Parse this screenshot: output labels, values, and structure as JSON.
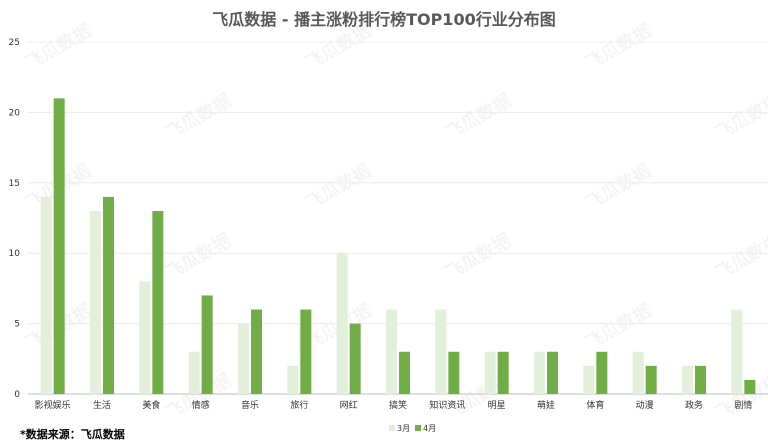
{
  "chart_data": {
    "type": "bar",
    "title": "飞瓜数据 - 播主涨粉排行榜TOP100行业分布图",
    "categories": [
      "影视娱乐",
      "生活",
      "美食",
      "情感",
      "音乐",
      "旅行",
      "网红",
      "搞笑",
      "知识资讯",
      "明星",
      "萌娃",
      "体育",
      "动漫",
      "政务",
      "剧情"
    ],
    "series": [
      {
        "name": "3月",
        "values": [
          14,
          13,
          8,
          3,
          5,
          2,
          10,
          6,
          6,
          3,
          3,
          2,
          3,
          2,
          6
        ]
      },
      {
        "name": "4月",
        "values": [
          21,
          14,
          13,
          7,
          6,
          6,
          5,
          3,
          3,
          3,
          3,
          3,
          2,
          2,
          1
        ]
      }
    ],
    "ylim": [
      0,
      25
    ],
    "yticks": [
      0,
      5,
      10,
      15,
      20,
      25
    ],
    "grid": true,
    "legend": "bottom-center",
    "colors": {
      "3月": "#e2efda",
      "4月": "#70ad47"
    }
  },
  "source_note": "*数据来源：飞瓜数据",
  "watermark_text": "飞瓜数据"
}
